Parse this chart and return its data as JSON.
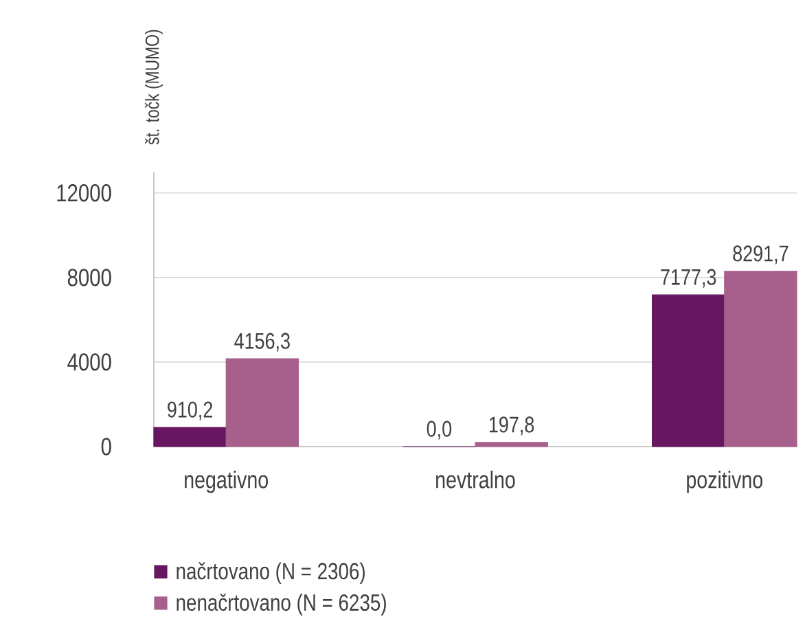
{
  "chart_data": {
    "type": "bar",
    "ylabel": "št. točk (MUMO)",
    "categories": [
      "negativno",
      "nevtralno",
      "pozitivno"
    ],
    "series": [
      {
        "name": "načrtovano (N = 2306)",
        "color": "#66175f",
        "values": [
          910.2,
          0.0,
          7177.3
        ],
        "value_labels": [
          "910,2",
          "0,0",
          "7177,3"
        ]
      },
      {
        "name": "nenačrtovano (N = 6235)",
        "color": "#a7608c",
        "values": [
          4156.3,
          197.8,
          8291.7
        ],
        "value_labels": [
          "4156,3",
          "197,8",
          "8291,7"
        ]
      }
    ],
    "ylim": [
      0,
      13000
    ],
    "yticks": [
      0,
      4000,
      8000,
      12000
    ],
    "grid": "y",
    "legend": "bottom"
  }
}
